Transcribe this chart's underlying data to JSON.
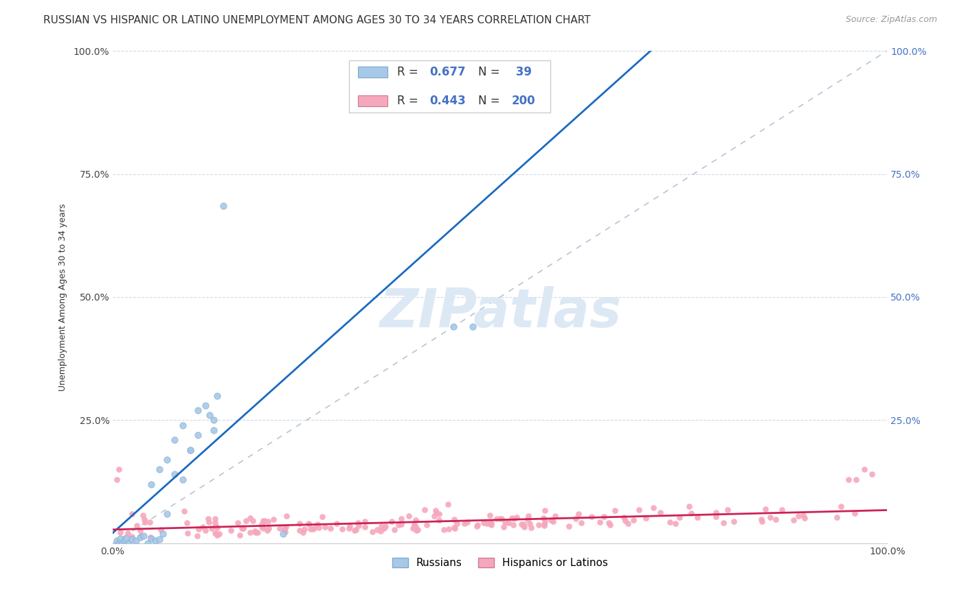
{
  "title": "RUSSIAN VS HISPANIC OR LATINO UNEMPLOYMENT AMONG AGES 30 TO 34 YEARS CORRELATION CHART",
  "source": "Source: ZipAtlas.com",
  "ylabel": "Unemployment Among Ages 30 to 34 years",
  "R_russian": 0.677,
  "N_russian": 39,
  "R_hispanic": 0.443,
  "N_hispanic": 200,
  "russian_color": "#a8c8e8",
  "russian_edge_color": "#7aaace",
  "russian_line_color": "#1a6abf",
  "hispanic_color": "#f5a8bc",
  "hispanic_edge_color": "#d07890",
  "hispanic_line_color": "#cc2255",
  "diagonal_color": "#b8c4d4",
  "background_color": "#ffffff",
  "grid_color": "#d0d8e4",
  "watermark_color": "#dde8f5",
  "title_fontsize": 11,
  "source_fontsize": 9,
  "axis_label_fontsize": 9,
  "tick_color_left": "#444444",
  "tick_color_right": "#4472c4",
  "legend_text_color": "#333333",
  "legend_value_color": "#4472c4"
}
